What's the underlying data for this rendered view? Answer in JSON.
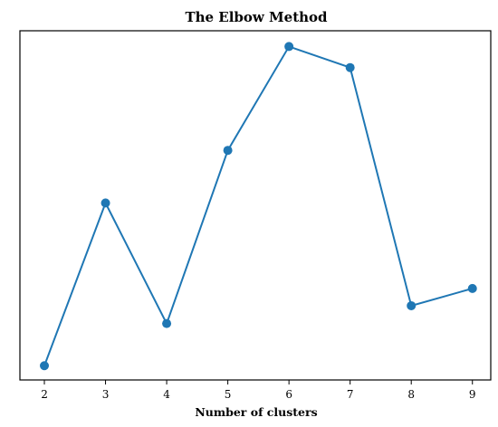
{
  "chart_data": {
    "type": "line",
    "title": "The Elbow Method",
    "xlabel": "Number of clusters",
    "ylabel": "",
    "x": [
      2,
      3,
      4,
      5,
      6,
      7,
      8,
      9
    ],
    "series": [
      {
        "values": [
          0.0,
          0.4566,
          0.1183,
          0.6044,
          0.8958,
          0.8367,
          0.1683,
          0.2167
        ],
        "color": "#1f77b4",
        "marker": "circle"
      }
    ],
    "xlim": [
      1.6,
      9.3
    ],
    "ylim": [
      -0.04,
      0.94
    ],
    "y_ticks_shown": false,
    "grid": false
  }
}
